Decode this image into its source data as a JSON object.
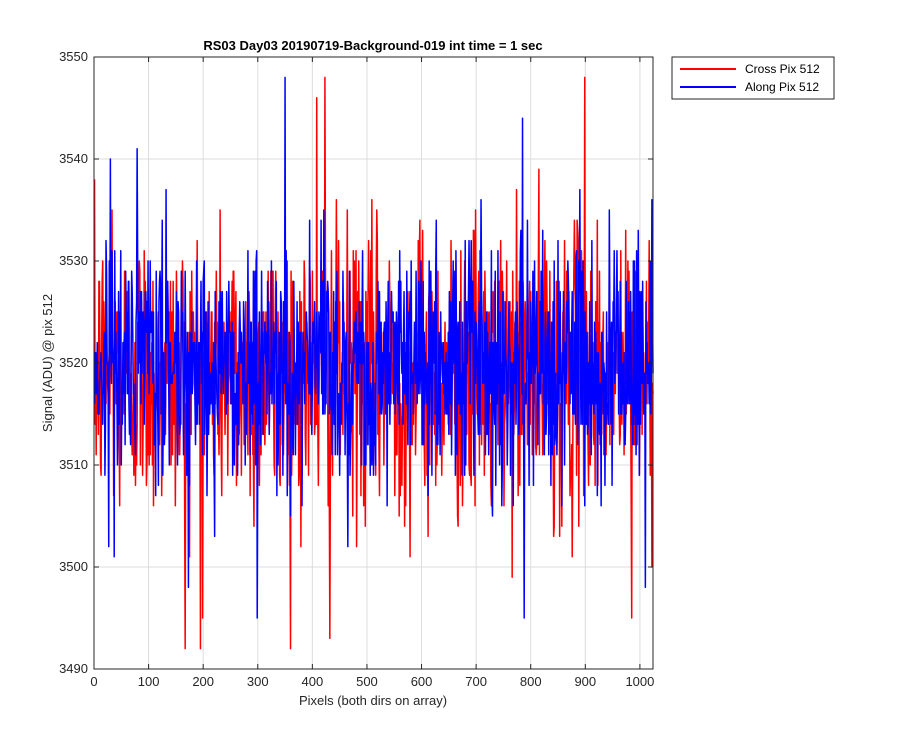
{
  "chart_data": {
    "type": "line",
    "title": "RS03 Day03 20190719-Background-019 int time = 1 sec",
    "xlabel": "Pixels (both dirs on array)",
    "ylabel": "Signal (ADU) @ pix 512",
    "xlim": [
      0,
      1024
    ],
    "ylim": [
      3490,
      3550
    ],
    "xticks": [
      0,
      100,
      200,
      300,
      400,
      500,
      600,
      700,
      800,
      900,
      1000
    ],
    "yticks": [
      3490,
      3500,
      3510,
      3520,
      3530,
      3540,
      3550
    ],
    "grid": true,
    "legend_position": "outside-top-right",
    "series": [
      {
        "name": "Cross Pix 512",
        "color": "#ff0000",
        "x_start": 1,
        "x_step": 1,
        "count": 1024,
        "mean": 3519,
        "std": 7,
        "min": 3492,
        "max": 3548,
        "notable_points": [
          [
            33,
            3535
          ],
          [
            167,
            3492
          ],
          [
            199,
            3495
          ],
          [
            408,
            3546
          ],
          [
            423,
            3548
          ],
          [
            432,
            3493
          ],
          [
            899,
            3548
          ],
          [
            985,
            3495
          ]
        ]
      },
      {
        "name": "Along Pix 512",
        "color": "#0000ff",
        "x_start": 1,
        "x_step": 1,
        "count": 1024,
        "mean": 3520,
        "std": 6,
        "min": 3495,
        "max": 3548,
        "notable_points": [
          [
            30,
            3540
          ],
          [
            299,
            3495
          ],
          [
            350,
            3548
          ],
          [
            788,
            3495
          ],
          [
            785,
            3544
          ],
          [
            1010,
            3498
          ]
        ]
      }
    ]
  }
}
